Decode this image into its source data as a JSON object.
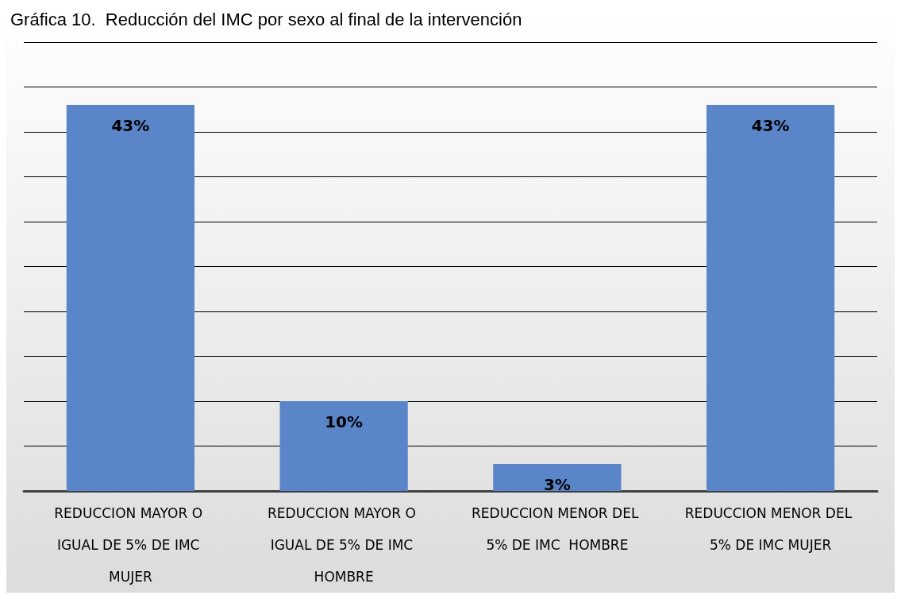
{
  "chart_data": {
    "type": "bar",
    "title": "Gráfica 10.  Reducción del IMC por sexo al final de la intervención",
    "categories": [
      "REDUCCION MAYOR O IGUAL DE 5% DE IMC MUJER",
      "REDUCCION MAYOR O IGUAL DE 5% DE IMC HOMBRE",
      "REDUCCION MENOR DEL 5% DE IMC  HOMBRE",
      "REDUCCION MENOR DEL 5% DE IMC MUJER"
    ],
    "values": [
      43,
      10,
      3,
      43
    ],
    "color": "#5b85c9",
    "value_labels": [
      "43%",
      "10%",
      "3%",
      "43%"
    ],
    "ylim": [
      0,
      50
    ],
    "yticks": [
      {
        "value": 0,
        "label": null
      },
      {
        "value": 5,
        "label": null
      },
      {
        "value": 10,
        "label": null
      },
      {
        "value": 15,
        "label": null
      },
      {
        "value": 20,
        "label": null
      },
      {
        "value": 25,
        "label": null
      },
      {
        "value": 30,
        "label": null
      },
      {
        "value": 35,
        "label": null
      },
      {
        "value": 40,
        "label": null
      },
      {
        "value": 45,
        "label": null
      },
      {
        "value": 50,
        "label": null
      }
    ],
    "grid": "y",
    "tick_labels": "x"
  }
}
